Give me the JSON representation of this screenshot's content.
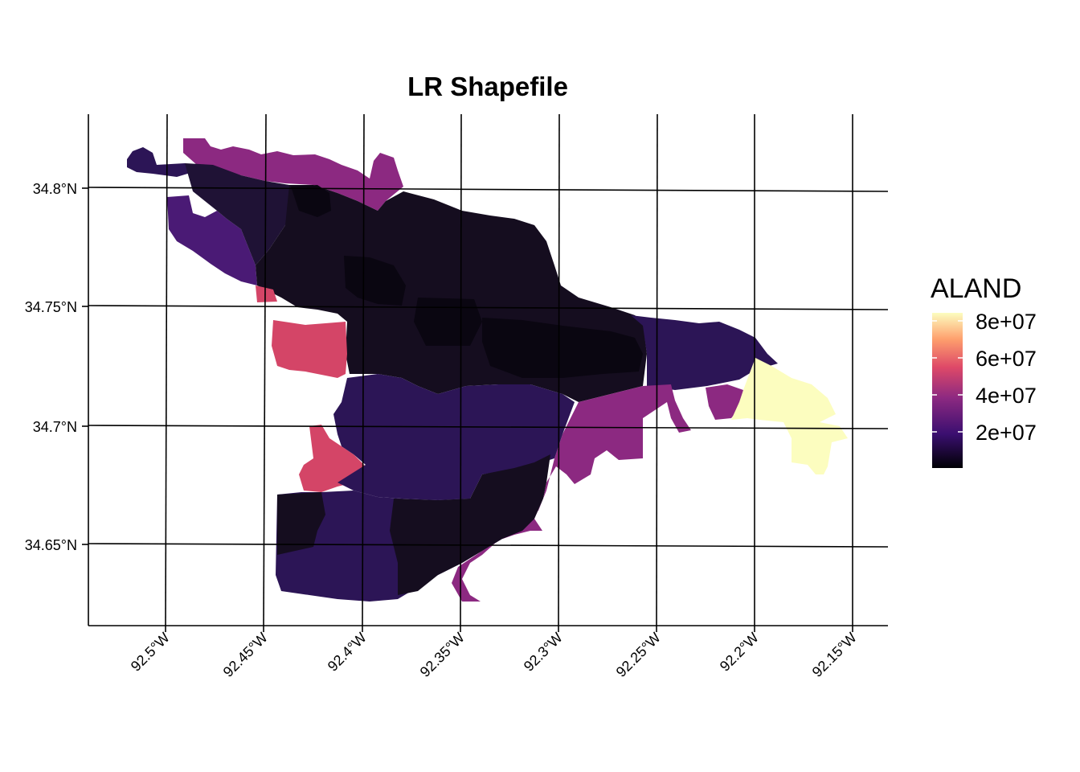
{
  "title": "LR Shapefile",
  "axes": {
    "latitude_ticks": [
      "34.8°N",
      "34.75°N",
      "34.7°N",
      "34.65°N"
    ],
    "longitude_ticks": [
      "92.5°W",
      "92.45°W",
      "92.4°W",
      "92.35°W",
      "92.3°W",
      "92.25°W",
      "92.2°W",
      "92.15°W"
    ]
  },
  "legend": {
    "title": "ALAND",
    "labels": [
      "8e+07",
      "6e+07",
      "4e+07",
      "2e+07"
    ],
    "palette": [
      "#000004",
      "#3b0f70",
      "#8c2981",
      "#de4968",
      "#fe9f6d",
      "#fcfdbf"
    ]
  },
  "colors": {
    "darkest": "#0a0611",
    "very_dark": "#150d1f",
    "dark": "#1f1235",
    "deep_purple": "#2c1556",
    "purple": "#4a1a75",
    "magenta": "#8c2981",
    "pink_red": "#d44567",
    "pale_yellow": "#fcfdbf"
  },
  "map": {
    "type": "choropleth",
    "variable": "ALAND",
    "scale": "magma",
    "range": [
      0,
      85000000
    ]
  }
}
